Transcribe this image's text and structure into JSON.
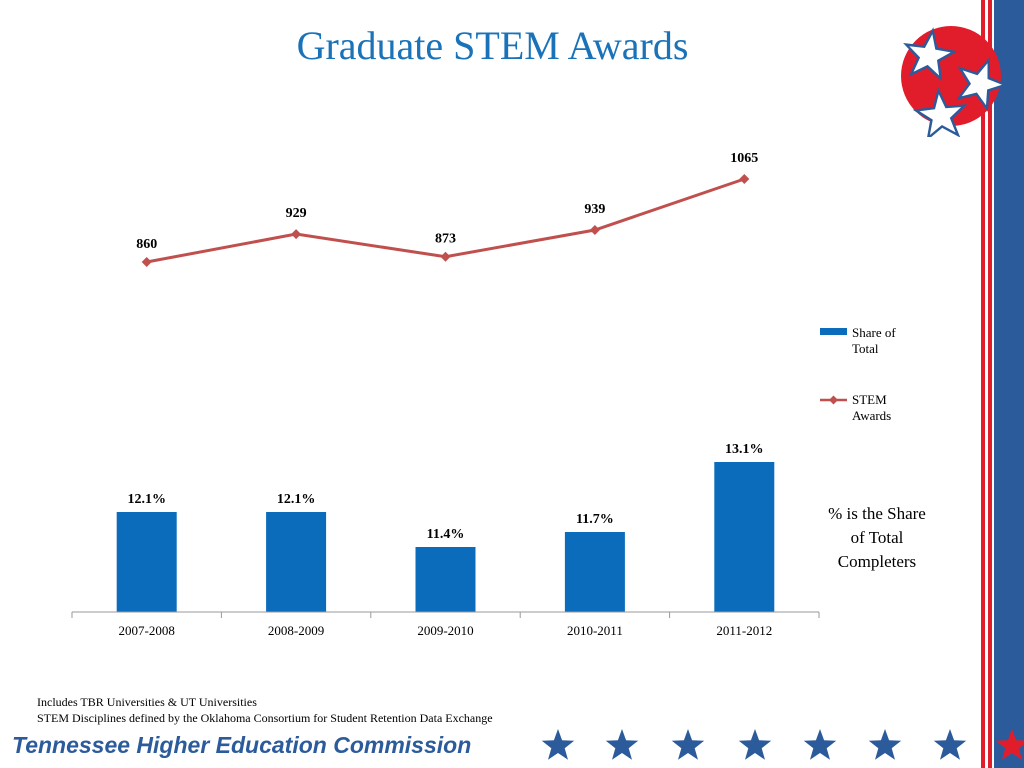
{
  "title": "Graduate STEM Awards",
  "chart_data": {
    "type": "bar",
    "categories": [
      "2007-2008",
      "2008-2009",
      "2009-2010",
      "2010-2011",
      "2011-2012"
    ],
    "series": [
      {
        "name": "Share of Total",
        "type": "bar",
        "values": [
          12.1,
          12.1,
          11.4,
          11.7,
          13.1
        ],
        "labels": [
          "12.1%",
          "12.1%",
          "11.4%",
          "11.7%",
          "13.1%"
        ],
        "color": "#0b6cbc"
      },
      {
        "name": "STEM Awards",
        "type": "line",
        "values": [
          860,
          929,
          873,
          939,
          1065
        ],
        "labels": [
          "860",
          "929",
          "873",
          "939",
          "1065"
        ],
        "color": "#c0504d"
      }
    ],
    "legend": [
      "Share of Total",
      "STEM Awards"
    ],
    "legend_lines": [
      [
        "Share of",
        "Total"
      ],
      [
        "STEM",
        "Awards"
      ]
    ],
    "legend_position": "right",
    "grid": false
  },
  "note": "% is the Share of Total Completers",
  "footnotes": [
    "Includes TBR Universities & UT Universities",
    "STEM Disciplines defined by the Oklahoma Consortium for Student Retention Data Exchange"
  ],
  "footer": "Tennessee Higher Education Commission",
  "colors": {
    "brand_blue": "#2c5b9c",
    "brand_red": "#e21d2b",
    "title_blue": "#1a73b8"
  },
  "icons": {
    "logo": "tennessee-tri-star-icon",
    "footer_star": "star-icon"
  }
}
